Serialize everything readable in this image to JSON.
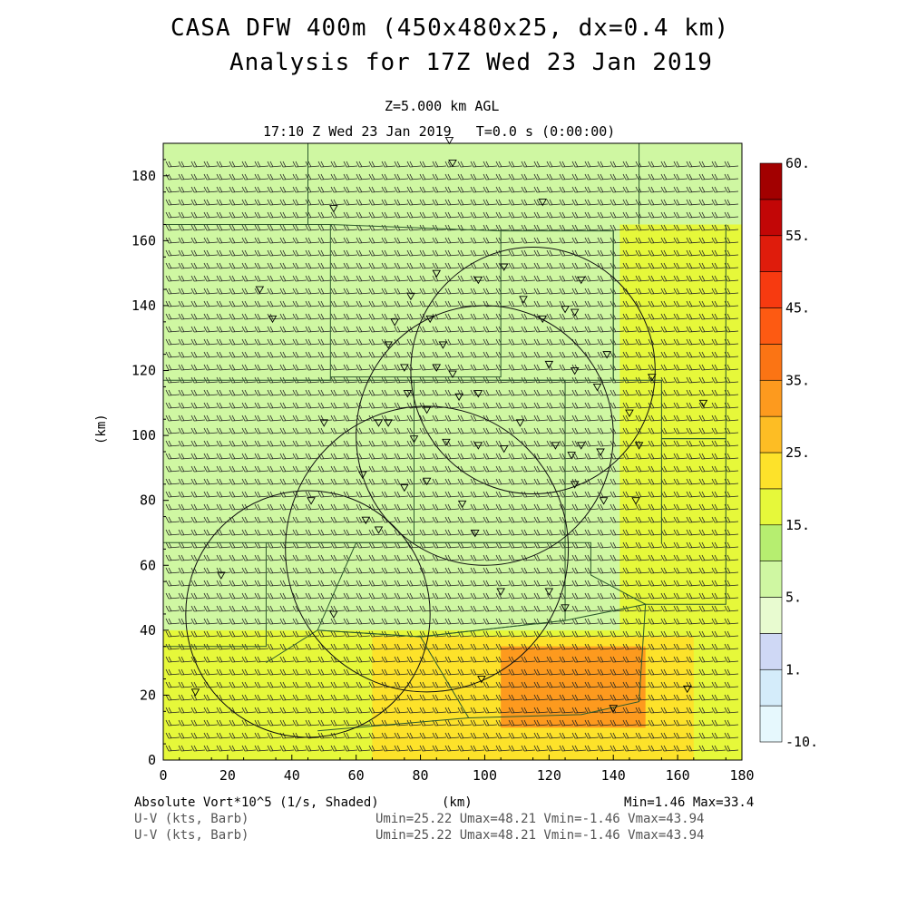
{
  "title_line1": "CASA DFW 400m (450x480x25, dx=0.4 km)",
  "title_line2": "Analysis for 17Z Wed 23 Jan 2019",
  "level_label": "Z=5.000 km AGL",
  "time_label": "17:10 Z Wed 23 Jan 2019   T=0.0 s (0:00:00)",
  "footer": {
    "field_label": "Absolute Vort*10^5 (1/s, Shaded)",
    "x_unit": "(km)",
    "minmax": "Min=1.46 Max=33.4",
    "vec1_label": "U-V (kts, Barb)",
    "vec1_stats": "Umin=25.22 Umax=48.21 Vmin=-1.46 Vmax=43.94",
    "vec2_label": "U-V (kts, Barb)",
    "vec2_stats": "Umin=25.22 Umax=48.21 Vmin=-1.46 Vmax=43.94"
  },
  "chart_data": {
    "type": "heatmap",
    "field": "Absolute Vorticity x10^5 (1/s)",
    "xlabel": "(km)",
    "ylabel": "(km)",
    "xlim": [
      0,
      180
    ],
    "ylim": [
      0,
      190
    ],
    "x_ticks": [
      "0",
      "20",
      "40",
      "60",
      "80",
      "100",
      "120",
      "140",
      "160",
      "180"
    ],
    "y_ticks": [
      "0",
      "20",
      "40",
      "60",
      "80",
      "100",
      "120",
      "140",
      "160",
      "180"
    ],
    "min": 1.46,
    "max": 33.4,
    "colorbar": {
      "labels": [
        "60.",
        "55.",
        "45.",
        "35.",
        "25.",
        "15.",
        "5.",
        "1.",
        "-10."
      ],
      "levels": [
        -10,
        -5,
        1,
        3,
        5,
        10,
        15,
        20,
        25,
        30,
        35,
        40,
        45,
        50,
        55,
        60
      ],
      "colors": [
        "#e6f8fd",
        "#d4ecfa",
        "#cfd8f5",
        "#e8fbd0",
        "#cff7a2",
        "#b6ee70",
        "#e6f83a",
        "#fde22a",
        "#fdbd24",
        "#fd9a1e",
        "#fb7414",
        "#fd5a12",
        "#f73a10",
        "#df1c0c",
        "#c20606",
        "#a20000"
      ]
    },
    "regions": [
      {
        "desc": "west/north background",
        "x": [
          0,
          180
        ],
        "y": [
          0,
          190
        ],
        "value": 9
      },
      {
        "desc": "east band",
        "x": [
          142,
          180
        ],
        "y": [
          40,
          165
        ],
        "value": 16
      },
      {
        "desc": "southern band",
        "x": [
          0,
          180
        ],
        "y": [
          0,
          40
        ],
        "value": 19
      },
      {
        "desc": "south-central maximum",
        "x": [
          65,
          165
        ],
        "y": [
          0,
          38
        ],
        "value": 24
      },
      {
        "desc": "southeast core",
        "x": [
          105,
          150
        ],
        "y": [
          10,
          35
        ],
        "value": 30
      }
    ],
    "range_rings": [
      {
        "center_km": [
          45,
          45
        ],
        "radius_km": 38
      },
      {
        "center_km": [
          82,
          65
        ],
        "radius_km": 44
      },
      {
        "center_km": [
          100,
          100
        ],
        "radius_km": 40
      },
      {
        "center_km": [
          115,
          120
        ],
        "radius_km": 38
      }
    ],
    "barbs": {
      "u_range_kts": [
        25.22,
        48.21
      ],
      "v_range_kts": [
        -1.46,
        43.94
      ]
    }
  }
}
